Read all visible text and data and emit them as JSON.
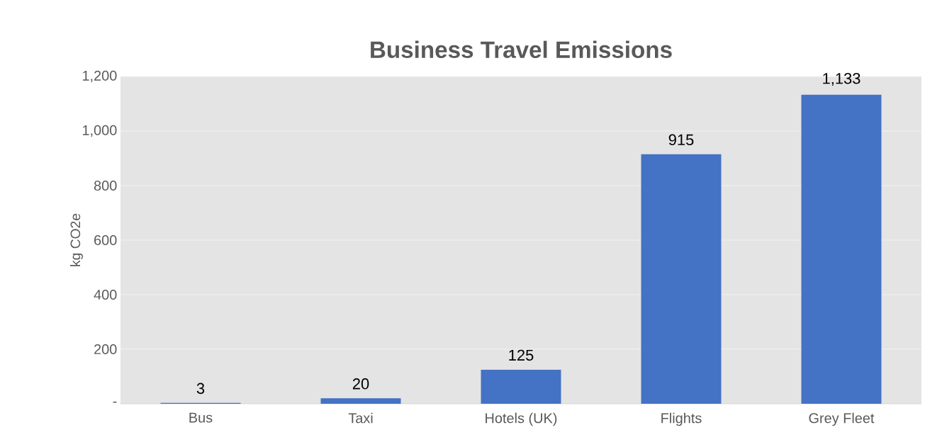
{
  "chart_data": {
    "type": "bar",
    "title": "Business Travel Emissions",
    "ylabel": "kg CO2e",
    "categories": [
      "Bus",
      "Taxi",
      "Hotels (UK)",
      "Flights",
      "Grey Fleet"
    ],
    "values": [
      3,
      20,
      125,
      915,
      1133
    ],
    "value_labels": [
      "3",
      "20",
      "125",
      "915",
      "1,133"
    ],
    "color": "#4472c4",
    "ylim": [
      0,
      1200
    ],
    "yticks": [
      {
        "value": 0,
        "label": "-"
      },
      {
        "value": 200,
        "label": "200"
      },
      {
        "value": 400,
        "label": "400"
      },
      {
        "value": 600,
        "label": "600"
      },
      {
        "value": 800,
        "label": "800"
      },
      {
        "value": 1000,
        "label": "1,000"
      },
      {
        "value": 1200,
        "label": "1,200"
      }
    ],
    "grid": "y"
  }
}
